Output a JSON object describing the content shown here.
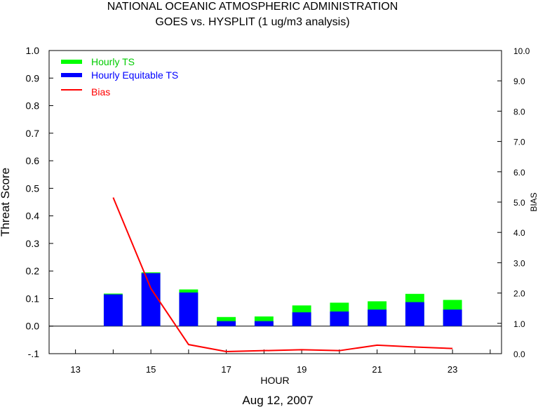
{
  "chart_data": {
    "type": "bar",
    "title": "NATIONAL OCEANIC ATMOSPHERIC ADMINISTRATION",
    "subtitle": "GOES vs. HYSPLIT  (1 ug/m3 analysis)",
    "xlabel": "HOUR",
    "ylabel": "Threat Score",
    "y2label": "BIAS",
    "date_label": "Aug 12, 2007",
    "xlim": [
      12.3,
      24.3
    ],
    "ylim": [
      -0.1,
      1.0
    ],
    "y2lim": [
      0.0,
      10.0
    ],
    "x_ticks": [
      13,
      14,
      15,
      16,
      17,
      18,
      19,
      20,
      21,
      22,
      23,
      24
    ],
    "x_tick_labels": [
      "13",
      "15",
      "17",
      "19",
      "21",
      "23"
    ],
    "x_tick_label_values": [
      13,
      15,
      17,
      19,
      21,
      23
    ],
    "y_tick_labels": [
      "-.1",
      "0.0",
      "0.1",
      "0.2",
      "0.3",
      "0.4",
      "0.5",
      "0.6",
      "0.7",
      "0.8",
      "0.9",
      "1.0"
    ],
    "y_tick_values": [
      -0.1,
      0.0,
      0.1,
      0.2,
      0.3,
      0.4,
      0.5,
      0.6,
      0.7,
      0.8,
      0.9,
      1.0
    ],
    "y2_tick_labels": [
      "0.0",
      "1.0",
      "2.0",
      "3.0",
      "4.0",
      "5.0",
      "6.0",
      "7.0",
      "8.0",
      "9.0",
      "10.0"
    ],
    "y2_tick_values": [
      0,
      1,
      2,
      3,
      4,
      5,
      6,
      7,
      8,
      9,
      10
    ],
    "legend_position": "top-left",
    "legend": [
      {
        "label": "Hourly TS",
        "color": "#00ff00",
        "text_color": "#00cc00"
      },
      {
        "label": "Hourly Equitable TS",
        "color": "#0000ff",
        "text_color": "#0000ff"
      },
      {
        "label": "Bias",
        "color": "#ff0000",
        "text_color": "#ff0000"
      }
    ],
    "categories": [
      14,
      15,
      16,
      17,
      18,
      19,
      20,
      21,
      22,
      23
    ],
    "series": [
      {
        "name": "Hourly TS",
        "axis": "left",
        "type": "bar",
        "color": "#00ff00",
        "values": [
          0.118,
          0.195,
          0.133,
          0.033,
          0.035,
          0.075,
          0.085,
          0.09,
          0.117,
          0.095
        ]
      },
      {
        "name": "Hourly Equitable TS",
        "axis": "left",
        "type": "bar",
        "color": "#0000ff",
        "values": [
          0.115,
          0.192,
          0.122,
          0.018,
          0.018,
          0.05,
          0.053,
          0.06,
          0.087,
          0.06
        ]
      },
      {
        "name": "Bias",
        "axis": "right",
        "type": "line",
        "color": "#ff0000",
        "values": [
          5.15,
          2.15,
          0.3,
          0.07,
          0.1,
          0.13,
          0.1,
          0.28,
          0.22,
          0.17
        ]
      }
    ]
  }
}
